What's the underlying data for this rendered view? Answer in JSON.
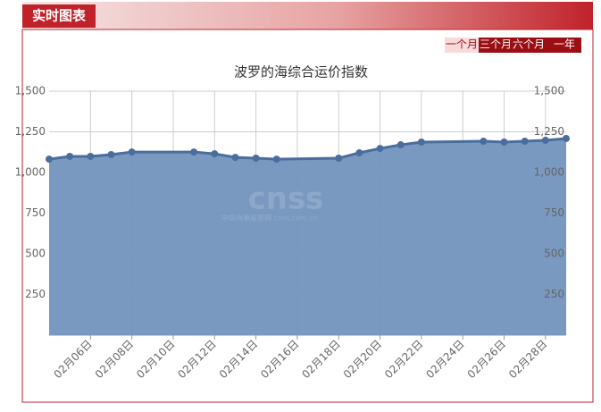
{
  "header": {
    "title": "实时图表",
    "buttons": [
      "一个月",
      "三个月",
      "六个月",
      "一年"
    ]
  },
  "chart_data": {
    "type": "area",
    "title": "波罗的海综合运价指数",
    "watermark": [
      "cnss",
      "中国海事服务网 cnss.com.cn"
    ],
    "x": [
      "02月04日",
      "02月05日",
      "02月06日",
      "02月07日",
      "02月08日",
      "02月11日",
      "02月12日",
      "02月13日",
      "02月14日",
      "02月15日",
      "02月18日",
      "02月19日",
      "02月20日",
      "02月21日",
      "02月22日",
      "02月25日",
      "02月26日",
      "02月27日",
      "02月28日",
      "02月29日"
    ],
    "series": [
      {
        "name": "波罗的海综合运价指数",
        "color": "#7294be",
        "line_color": "#4a6d9e",
        "values": [
          1082,
          1099,
          1099,
          1110,
          1126,
          1126,
          1115,
          1093,
          1088,
          1082,
          1088,
          1121,
          1148,
          1170,
          1187,
          1192,
          1187,
          1192,
          1198,
          1209
        ]
      }
    ],
    "xlim": [
      "02月04日",
      "02月29日"
    ],
    "xticks": [
      "02月06日",
      "02月08日",
      "02月10日",
      "02月12日",
      "02月14日",
      "02月16日",
      "02月18日",
      "02月20日",
      "02月22日",
      "02月24日",
      "02月26日",
      "02月28日"
    ],
    "ylim": [
      0,
      1500
    ],
    "yticks": [
      {
        "value": 250,
        "label": "250"
      },
      {
        "value": 500,
        "label": "500"
      },
      {
        "value": 750,
        "label": "750"
      },
      {
        "value": 1000,
        "label": "1,000"
      },
      {
        "value": 1250,
        "label": "1,250"
      },
      {
        "value": 1500,
        "label": "1,500"
      }
    ],
    "grid": true
  }
}
